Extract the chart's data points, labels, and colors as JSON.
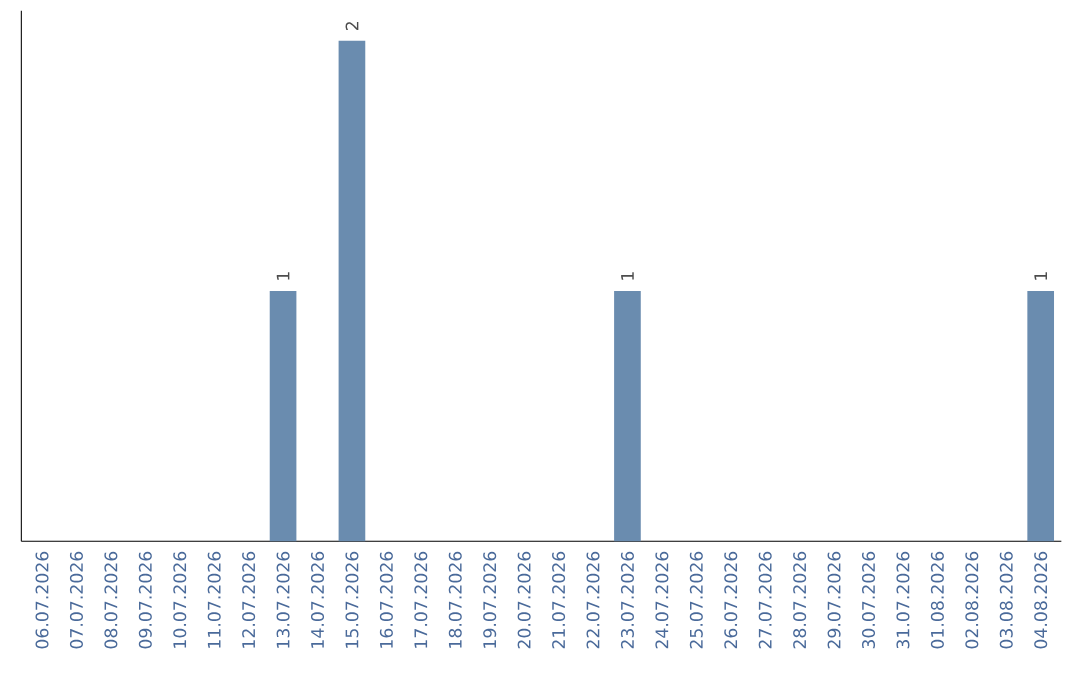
{
  "chart_data": {
    "type": "bar",
    "color": "#6a8caf",
    "categories": [
      "06.07.2026",
      "07.07.2026",
      "08.07.2026",
      "09.07.2026",
      "10.07.2026",
      "11.07.2026",
      "12.07.2026",
      "13.07.2026",
      "14.07.2026",
      "15.07.2026",
      "16.07.2026",
      "17.07.2026",
      "18.07.2026",
      "19.07.2026",
      "20.07.2026",
      "21.07.2026",
      "22.07.2026",
      "23.07.2026",
      "24.07.2026",
      "25.07.2026",
      "26.07.2026",
      "27.07.2026",
      "28.07.2026",
      "29.07.2026",
      "30.07.2026",
      "31.07.2026",
      "01.08.2026",
      "02.08.2026",
      "03.08.2026",
      "04.08.2026"
    ],
    "values": [
      0,
      0,
      0,
      0,
      0,
      0,
      0,
      1,
      0,
      2,
      0,
      0,
      0,
      0,
      0,
      0,
      0,
      1,
      0,
      0,
      0,
      0,
      0,
      0,
      0,
      0,
      0,
      0,
      0,
      1
    ],
    "value_labels": [
      null,
      null,
      null,
      null,
      null,
      null,
      null,
      "1",
      null,
      "2",
      null,
      null,
      null,
      null,
      null,
      null,
      null,
      "1",
      null,
      null,
      null,
      null,
      null,
      null,
      null,
      null,
      null,
      null,
      null,
      "1"
    ],
    "tick_labels": "x"
  }
}
